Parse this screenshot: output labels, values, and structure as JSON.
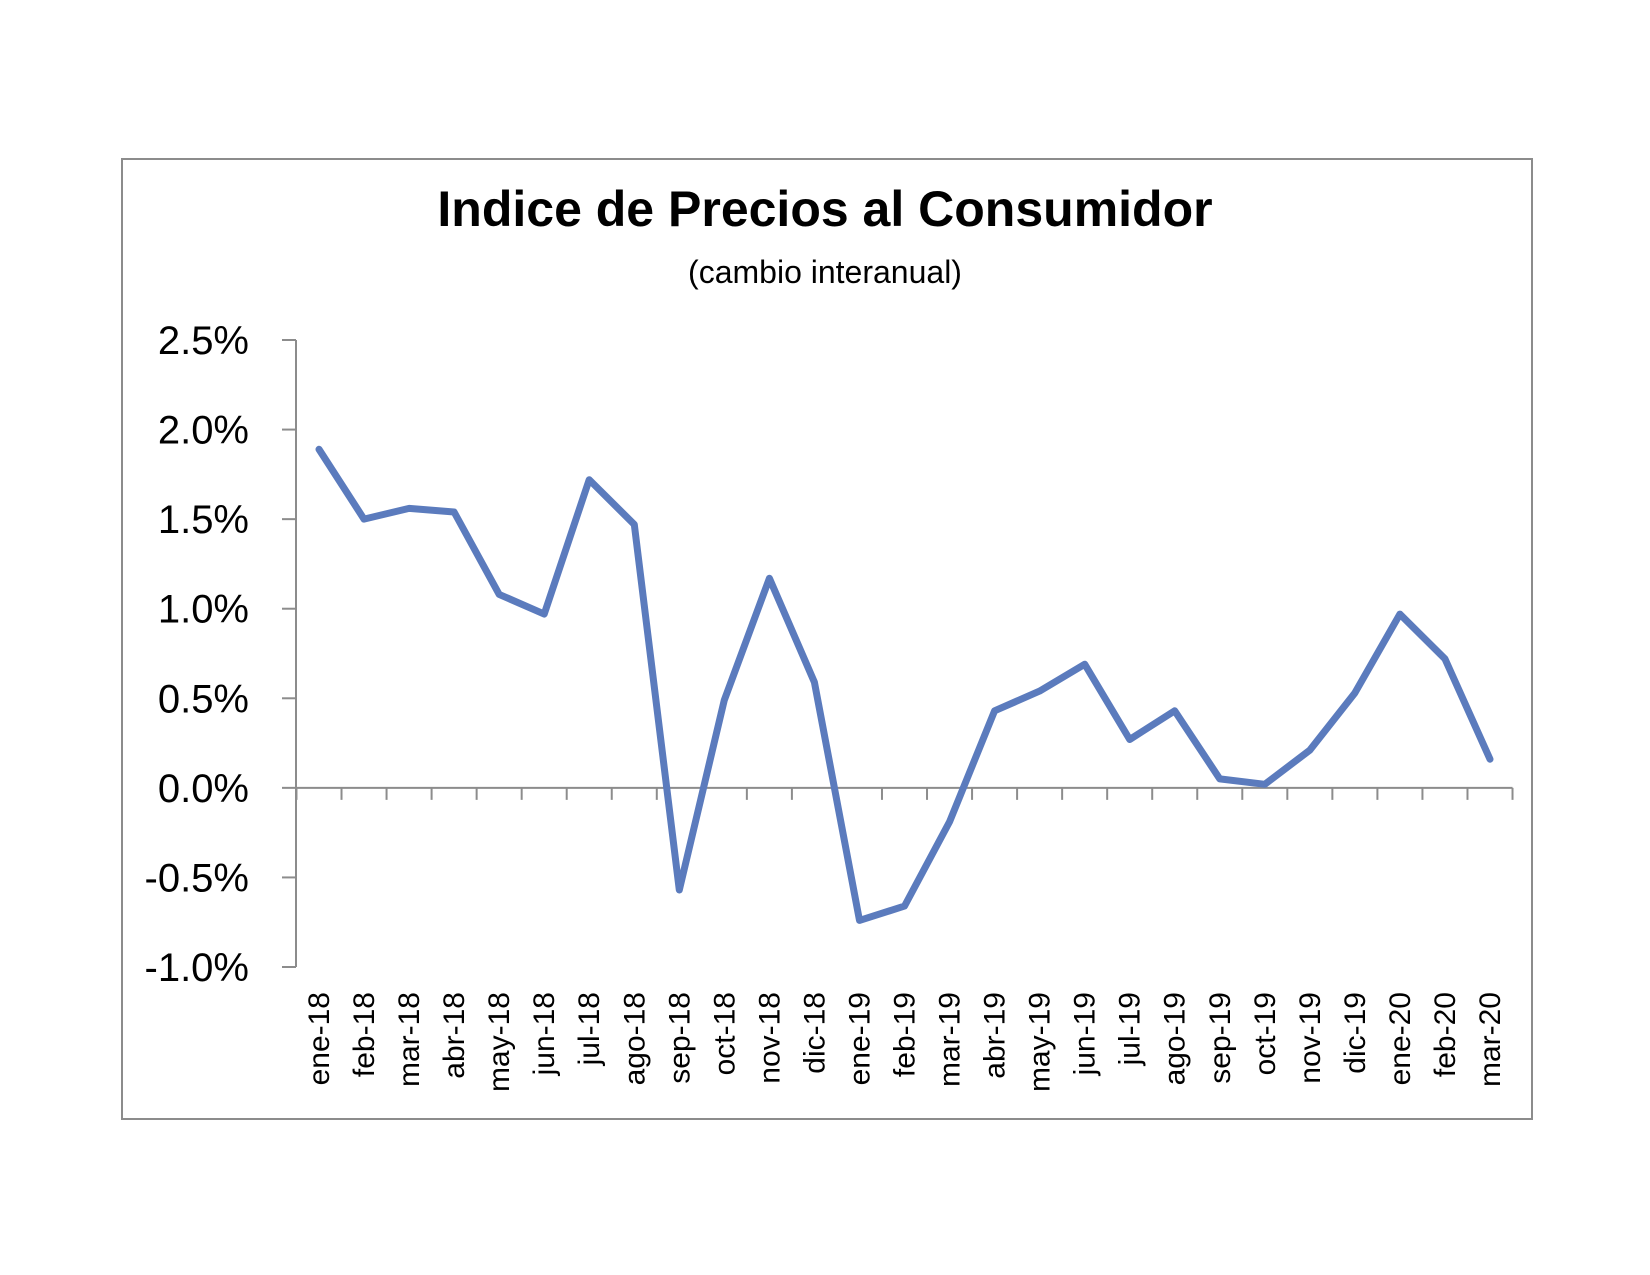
{
  "chart_data": {
    "type": "line",
    "title": "Indice de Precios al Consumidor",
    "subtitle": "(cambio interanual)",
    "xlabel": "",
    "ylabel": "",
    "categories": [
      "ene-18",
      "feb-18",
      "mar-18",
      "abr-18",
      "may-18",
      "jun-18",
      "jul-18",
      "ago-18",
      "sep-18",
      "oct-18",
      "nov-18",
      "dic-18",
      "ene-19",
      "feb-19",
      "mar-19",
      "abr-19",
      "may-19",
      "jun-19",
      "jul-19",
      "ago-19",
      "sep-19",
      "oct-19",
      "nov-19",
      "dic-19",
      "ene-20",
      "feb-20",
      "mar-20"
    ],
    "series": [
      {
        "values": [
          1.89,
          1.5,
          1.56,
          1.54,
          1.08,
          0.97,
          1.72,
          1.47,
          -0.57,
          0.49,
          1.17,
          0.59,
          -0.74,
          -0.66,
          -0.19,
          0.43,
          0.54,
          0.69,
          0.27,
          0.43,
          0.05,
          0.02,
          0.21,
          0.53,
          0.97,
          0.72,
          0.16
        ],
        "color": "#5b7bbd"
      }
    ],
    "ylim": [
      -1.0,
      2.5
    ],
    "yticks": [
      2.5,
      2.0,
      1.5,
      1.0,
      0.5,
      0.0,
      -0.5,
      -1.0
    ],
    "ytick_labels": [
      "2.5%",
      "2.0%",
      "1.5%",
      "1.0%",
      "0.5%",
      "0.0%",
      "-0.5%",
      "-1.0%"
    ],
    "grid": false,
    "legend": "none"
  }
}
